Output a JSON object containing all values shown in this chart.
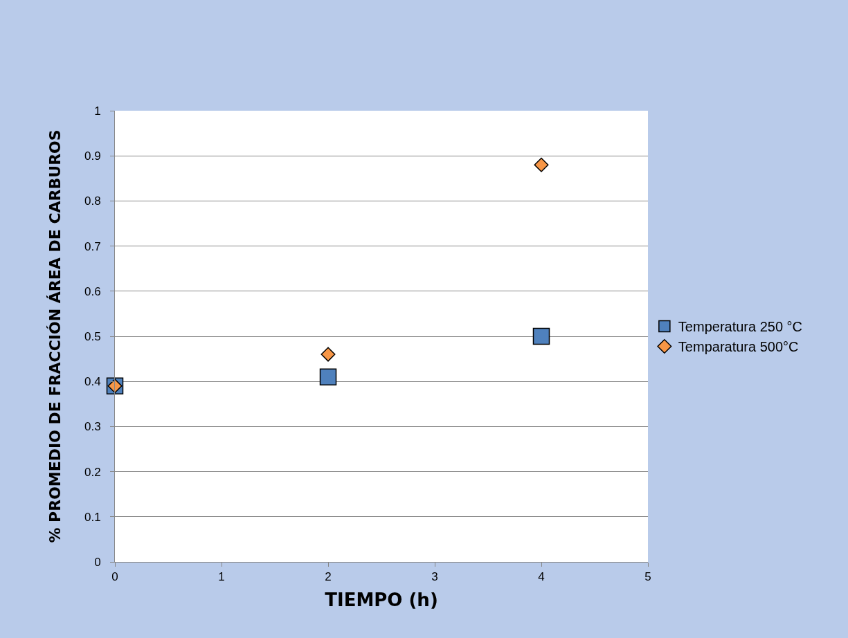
{
  "chart_data": {
    "type": "scatter",
    "xlabel": "TIEMPO (h)",
    "ylabel": "% PROMEDIO DE FRACCIÓN ÁREA DE CARBUROS",
    "x": [
      0,
      2,
      4
    ],
    "series": [
      {
        "name": "Temperatura 250 °C",
        "color": "#4f81bd",
        "marker": "square",
        "values": [
          0.39,
          0.41,
          0.5
        ]
      },
      {
        "name": "Temparatura 500°C",
        "color": "#f79646",
        "marker": "diamond",
        "values": [
          0.39,
          0.46,
          0.88
        ]
      }
    ],
    "xlim": [
      0,
      5
    ],
    "xticks": [
      0,
      1,
      2,
      3,
      4,
      5
    ],
    "ylim": [
      0,
      1
    ],
    "yticks": [
      0,
      0.1,
      0.2,
      0.3,
      0.4,
      0.5,
      0.6,
      0.7,
      0.8,
      0.9,
      1
    ],
    "grid": "y",
    "legend": "right"
  }
}
